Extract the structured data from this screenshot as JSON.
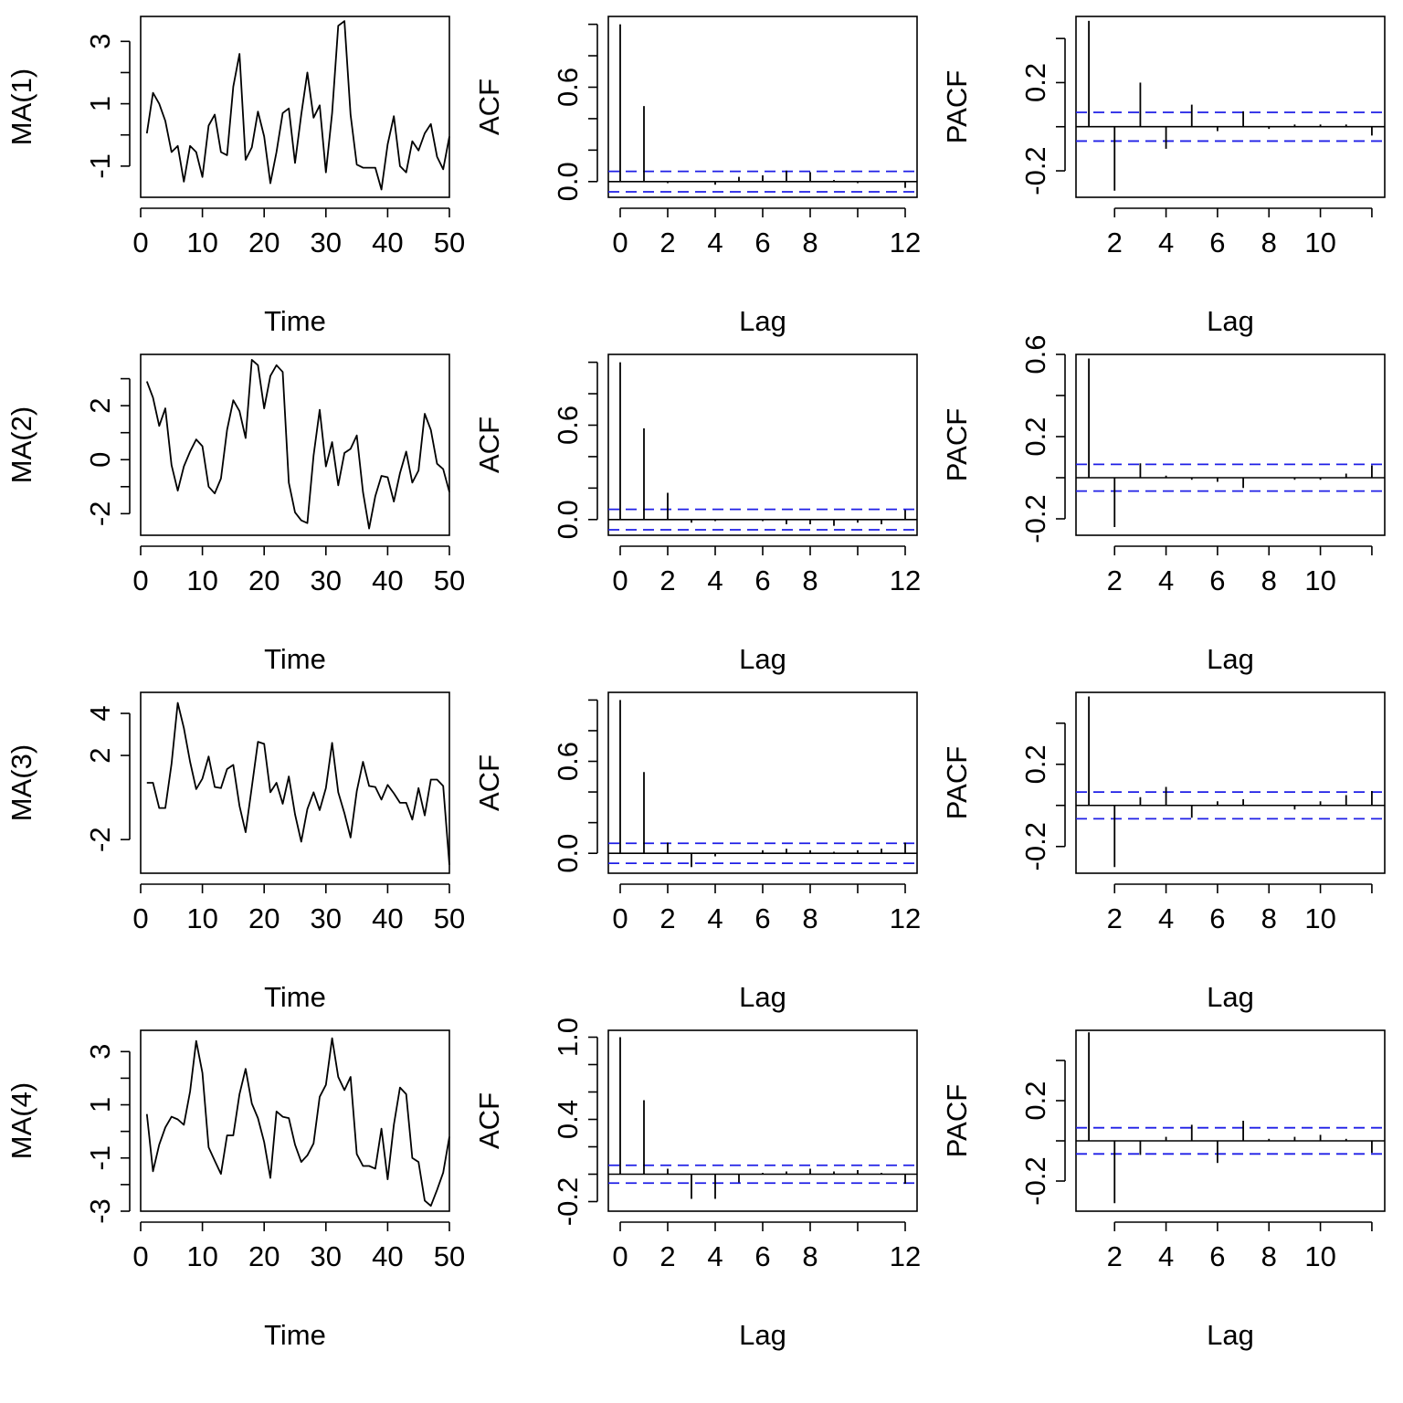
{
  "chart_data": [
    {
      "type": "line",
      "row": 1,
      "ylabel": "MA(1)",
      "xlabel": "Time",
      "xlim": [
        0,
        50
      ],
      "ylim": [
        -2.0,
        3.8
      ],
      "xticks": [
        0,
        10,
        20,
        30,
        40,
        50
      ],
      "yticks": [
        -1,
        0,
        1,
        2,
        3
      ],
      "ytick_labels": [
        "-1",
        "",
        "1",
        "",
        "3"
      ],
      "x": [
        1,
        2,
        3,
        4,
        5,
        6,
        7,
        8,
        9,
        10,
        11,
        12,
        13,
        14,
        15,
        16,
        17,
        18,
        19,
        20,
        21,
        22,
        23,
        24,
        25,
        26,
        27,
        28,
        29,
        30,
        31,
        32,
        33,
        34,
        35,
        36,
        37,
        38,
        39,
        40,
        41,
        42,
        43,
        44,
        45,
        46,
        47,
        48,
        49,
        50
      ],
      "values": [
        0.05,
        1.35,
        1.0,
        0.45,
        -0.55,
        -0.35,
        -1.5,
        -0.35,
        -0.55,
        -1.35,
        0.3,
        0.65,
        -0.55,
        -0.65,
        1.55,
        2.6,
        -0.8,
        -0.4,
        0.75,
        -0.05,
        -1.55,
        -0.55,
        0.7,
        0.85,
        -0.9,
        0.65,
        2.0,
        0.55,
        0.95,
        -1.2,
        0.7,
        3.5,
        3.65,
        0.65,
        -0.95,
        -1.05,
        -1.05,
        -1.05,
        -1.75,
        -0.3,
        0.6,
        -1.0,
        -1.2,
        -0.2,
        -0.5,
        0.05,
        0.35,
        -0.7,
        -1.1,
        -0.05
      ]
    },
    {
      "type": "bar",
      "row": 1,
      "ylabel": "ACF",
      "xlabel": "Lag",
      "xlim": [
        -0.5,
        12.5
      ],
      "ylim": [
        -0.1,
        1.05
      ],
      "xticks": [
        0,
        2,
        4,
        6,
        8,
        10,
        12
      ],
      "xtick_labels": [
        "0",
        "2",
        "4",
        "6",
        "8",
        "",
        "12"
      ],
      "yticks": [
        0,
        0.2,
        0.4,
        0.6,
        0.8,
        1.0
      ],
      "ytick_labels": [
        "0.0",
        "",
        "",
        "0.6",
        "",
        ""
      ],
      "x": [
        0,
        1,
        2,
        3,
        4,
        5,
        6,
        7,
        8,
        9,
        10,
        11,
        12
      ],
      "values": [
        1.0,
        0.48,
        -0.01,
        0.0,
        -0.02,
        0.03,
        0.04,
        0.07,
        0.06,
        0.01,
        -0.01,
        0.0,
        -0.04
      ],
      "ci": 0.065
    },
    {
      "type": "bar",
      "row": 1,
      "ylabel": "PACF",
      "xlabel": "Lag",
      "xlim": [
        0.5,
        12.5
      ],
      "ylim": [
        -0.32,
        0.5
      ],
      "xticks": [
        2,
        4,
        6,
        8,
        10,
        12
      ],
      "xtick_labels": [
        "2",
        "4",
        "6",
        "8",
        "10",
        ""
      ],
      "yticks": [
        -0.2,
        0.0,
        0.2,
        0.4
      ],
      "ytick_labels": [
        "-0.2",
        "",
        "0.2",
        ""
      ],
      "x": [
        1,
        2,
        3,
        4,
        5,
        6,
        7,
        8,
        9,
        10,
        11,
        12
      ],
      "values": [
        0.48,
        -0.29,
        0.2,
        -0.1,
        0.1,
        -0.02,
        0.07,
        -0.01,
        0.01,
        0.01,
        0.01,
        -0.04
      ],
      "ci": 0.065
    },
    {
      "type": "line",
      "row": 2,
      "ylabel": "MA(2)",
      "xlabel": "Time",
      "xlim": [
        0,
        50
      ],
      "ylim": [
        -2.8,
        3.9
      ],
      "xticks": [
        0,
        10,
        20,
        30,
        40,
        50
      ],
      "yticks": [
        -2,
        -1,
        0,
        1,
        2,
        3
      ],
      "ytick_labels": [
        "-2",
        "",
        "0",
        "",
        "2",
        ""
      ],
      "x": [
        1,
        2,
        3,
        4,
        5,
        6,
        7,
        8,
        9,
        10,
        11,
        12,
        13,
        14,
        15,
        16,
        17,
        18,
        19,
        20,
        21,
        22,
        23,
        24,
        25,
        26,
        27,
        28,
        29,
        30,
        31,
        32,
        33,
        34,
        35,
        36,
        37,
        38,
        39,
        40,
        41,
        42,
        43,
        44,
        45,
        46,
        47,
        48,
        49,
        50
      ],
      "values": [
        2.9,
        2.3,
        1.25,
        1.9,
        -0.2,
        -1.15,
        -0.25,
        0.3,
        0.75,
        0.5,
        -1.0,
        -1.25,
        -0.7,
        1.1,
        2.2,
        1.8,
        0.8,
        3.7,
        3.5,
        1.9,
        3.1,
        3.5,
        3.25,
        -0.85,
        -1.95,
        -2.25,
        -2.35,
        0.15,
        1.85,
        -0.25,
        0.65,
        -0.95,
        0.25,
        0.4,
        0.9,
        -1.2,
        -2.55,
        -1.35,
        -0.6,
        -0.65,
        -1.55,
        -0.5,
        0.3,
        -0.85,
        -0.4,
        1.7,
        1.1,
        -0.15,
        -0.35,
        -1.2
      ]
    },
    {
      "type": "bar",
      "row": 2,
      "ylabel": "ACF",
      "xlabel": "Lag",
      "xlim": [
        -0.5,
        12.5
      ],
      "ylim": [
        -0.1,
        1.05
      ],
      "xticks": [
        0,
        2,
        4,
        6,
        8,
        10,
        12
      ],
      "xtick_labels": [
        "0",
        "2",
        "4",
        "6",
        "8",
        "",
        "12"
      ],
      "yticks": [
        0,
        0.2,
        0.4,
        0.6,
        0.8,
        1.0
      ],
      "ytick_labels": [
        "0.0",
        "",
        "",
        "0.6",
        "",
        ""
      ],
      "x": [
        0,
        1,
        2,
        3,
        4,
        5,
        6,
        7,
        8,
        9,
        10,
        11,
        12
      ],
      "values": [
        1.0,
        0.58,
        0.17,
        -0.02,
        -0.01,
        0.0,
        -0.01,
        -0.03,
        -0.03,
        -0.04,
        -0.02,
        -0.03,
        0.06
      ],
      "ci": 0.065
    },
    {
      "type": "bar",
      "row": 2,
      "ylabel": "PACF",
      "xlabel": "Lag",
      "xlim": [
        0.5,
        12.5
      ],
      "ylim": [
        -0.28,
        0.6
      ],
      "xticks": [
        2,
        4,
        6,
        8,
        10,
        12
      ],
      "xtick_labels": [
        "2",
        "4",
        "6",
        "8",
        "10",
        ""
      ],
      "yticks": [
        -0.2,
        0.0,
        0.2,
        0.4,
        0.6
      ],
      "ytick_labels": [
        "-0.2",
        "",
        "0.2",
        "",
        "0.6"
      ],
      "x": [
        1,
        2,
        3,
        4,
        5,
        6,
        7,
        8,
        9,
        10,
        11,
        12
      ],
      "values": [
        0.58,
        -0.24,
        0.07,
        0.01,
        -0.01,
        -0.02,
        -0.05,
        0.0,
        -0.01,
        -0.01,
        0.02,
        0.06
      ],
      "ci": 0.065
    },
    {
      "type": "line",
      "row": 3,
      "ylabel": "MA(3)",
      "xlabel": "Time",
      "xlim": [
        0,
        50
      ],
      "ylim": [
        -3.6,
        5.0
      ],
      "xticks": [
        0,
        10,
        20,
        30,
        40,
        50
      ],
      "yticks": [
        -2,
        2,
        4
      ],
      "ytick_labels": [
        "-2",
        "2",
        "4"
      ],
      "x": [
        1,
        2,
        3,
        4,
        5,
        6,
        7,
        8,
        9,
        10,
        11,
        12,
        13,
        14,
        15,
        16,
        17,
        18,
        19,
        20,
        21,
        22,
        23,
        24,
        25,
        26,
        27,
        28,
        29,
        30,
        31,
        32,
        33,
        34,
        35,
        36,
        37,
        38,
        39,
        40,
        41,
        42,
        43,
        44,
        45,
        46,
        47,
        48,
        49,
        50
      ],
      "values": [
        0.7,
        0.7,
        -0.5,
        -0.5,
        1.6,
        4.5,
        3.3,
        1.7,
        0.4,
        0.9,
        1.95,
        0.5,
        0.45,
        1.35,
        1.55,
        -0.4,
        -1.65,
        0.5,
        2.65,
        2.55,
        0.25,
        0.7,
        -0.3,
        1.0,
        -0.8,
        -2.1,
        -0.55,
        0.25,
        -0.6,
        0.45,
        2.6,
        0.25,
        -0.75,
        -1.9,
        0.3,
        1.7,
        0.55,
        0.5,
        -0.1,
        0.6,
        0.2,
        -0.25,
        -0.25,
        -1.05,
        0.45,
        -0.85,
        0.85,
        0.85,
        0.55,
        -3.2
      ]
    },
    {
      "type": "bar",
      "row": 3,
      "ylabel": "ACF",
      "xlabel": "Lag",
      "xlim": [
        -0.5,
        12.5
      ],
      "ylim": [
        -0.13,
        1.05
      ],
      "xticks": [
        0,
        2,
        4,
        6,
        8,
        10,
        12
      ],
      "xtick_labels": [
        "0",
        "2",
        "4",
        "6",
        "8",
        "",
        "12"
      ],
      "yticks": [
        0,
        0.2,
        0.4,
        0.6,
        0.8,
        1.0
      ],
      "ytick_labels": [
        "0.0",
        "",
        "",
        "0.6",
        "",
        ""
      ],
      "x": [
        0,
        1,
        2,
        3,
        4,
        5,
        6,
        7,
        8,
        9,
        10,
        11,
        12
      ],
      "values": [
        1.0,
        0.53,
        0.07,
        -0.09,
        -0.02,
        0.0,
        0.02,
        0.03,
        0.02,
        0.01,
        0.02,
        0.03,
        0.07
      ],
      "ci": 0.065
    },
    {
      "type": "bar",
      "row": 3,
      "ylabel": "PACF",
      "xlabel": "Lag",
      "xlim": [
        0.5,
        12.5
      ],
      "ylim": [
        -0.33,
        0.55
      ],
      "xticks": [
        2,
        4,
        6,
        8,
        10,
        12
      ],
      "xtick_labels": [
        "2",
        "4",
        "6",
        "8",
        "10",
        ""
      ],
      "yticks": [
        -0.2,
        0.0,
        0.2,
        0.4
      ],
      "ytick_labels": [
        "-0.2",
        "",
        "0.2",
        ""
      ],
      "x": [
        1,
        2,
        3,
        4,
        5,
        6,
        7,
        8,
        9,
        10,
        11,
        12
      ],
      "values": [
        0.53,
        -0.3,
        0.04,
        0.09,
        -0.06,
        0.02,
        0.03,
        0.0,
        -0.02,
        0.02,
        0.05,
        0.07
      ],
      "ci": 0.065
    },
    {
      "type": "line",
      "row": 4,
      "ylabel": "MA(4)",
      "xlabel": "Time",
      "xlim": [
        0,
        50
      ],
      "ylim": [
        -3.0,
        3.8
      ],
      "xticks": [
        0,
        10,
        20,
        30,
        40,
        50
      ],
      "yticks": [
        -3,
        -2,
        -1,
        0,
        1,
        2,
        3
      ],
      "ytick_labels": [
        "-3",
        "",
        "-1",
        "",
        "1",
        "",
        "3"
      ],
      "x": [
        1,
        2,
        3,
        4,
        5,
        6,
        7,
        8,
        9,
        10,
        11,
        12,
        13,
        14,
        15,
        16,
        17,
        18,
        19,
        20,
        21,
        22,
        23,
        24,
        25,
        26,
        27,
        28,
        29,
        30,
        31,
        32,
        33,
        34,
        35,
        36,
        37,
        38,
        39,
        40,
        41,
        42,
        43,
        44,
        45,
        46,
        47,
        48,
        49,
        50
      ],
      "values": [
        0.65,
        -1.5,
        -0.5,
        0.15,
        0.55,
        0.45,
        0.25,
        1.5,
        3.4,
        2.2,
        -0.6,
        -1.1,
        -1.6,
        -0.15,
        -0.15,
        1.4,
        2.35,
        1.05,
        0.5,
        -0.4,
        -1.75,
        0.75,
        0.55,
        0.5,
        -0.5,
        -1.15,
        -0.9,
        -0.45,
        1.3,
        1.75,
        3.5,
        2.05,
        1.55,
        2.05,
        -0.85,
        -1.3,
        -1.3,
        -1.4,
        0.1,
        -1.8,
        0.25,
        1.65,
        1.4,
        -1.0,
        -1.15,
        -2.6,
        -2.8,
        -2.2,
        -1.55,
        -0.2
      ]
    },
    {
      "type": "bar",
      "row": 4,
      "ylabel": "ACF",
      "xlabel": "Lag",
      "xlim": [
        -0.5,
        12.5
      ],
      "ylim": [
        -0.27,
        1.05
      ],
      "xticks": [
        0,
        2,
        4,
        6,
        8,
        10,
        12
      ],
      "xtick_labels": [
        "0",
        "2",
        "4",
        "6",
        "8",
        "",
        "12"
      ],
      "yticks": [
        -0.2,
        0.0,
        0.2,
        0.4,
        0.6,
        0.8,
        1.0
      ],
      "ytick_labels": [
        "-0.2",
        "",
        "",
        "0.4",
        "",
        "",
        "1.0"
      ],
      "x": [
        0,
        1,
        2,
        3,
        4,
        5,
        6,
        7,
        8,
        9,
        10,
        11,
        12
      ],
      "values": [
        1.0,
        0.54,
        0.04,
        -0.18,
        -0.18,
        -0.06,
        0.01,
        0.02,
        0.04,
        0.02,
        0.03,
        0.01,
        -0.07
      ],
      "ci": 0.065
    },
    {
      "type": "bar",
      "row": 4,
      "ylabel": "PACF",
      "xlabel": "Lag",
      "xlim": [
        0.5,
        12.5
      ],
      "ylim": [
        -0.35,
        0.55
      ],
      "xticks": [
        2,
        4,
        6,
        8,
        10,
        12
      ],
      "xtick_labels": [
        "2",
        "4",
        "6",
        "8",
        "10",
        ""
      ],
      "yticks": [
        -0.2,
        0.0,
        0.2,
        0.4
      ],
      "ytick_labels": [
        "-0.2",
        "",
        "0.2",
        ""
      ],
      "x": [
        1,
        2,
        3,
        4,
        5,
        6,
        7,
        8,
        9,
        10,
        11,
        12
      ],
      "values": [
        0.54,
        -0.31,
        -0.07,
        0.02,
        0.08,
        -0.11,
        0.1,
        0.01,
        0.02,
        0.03,
        0.01,
        -0.06
      ],
      "ci": 0.065
    }
  ]
}
